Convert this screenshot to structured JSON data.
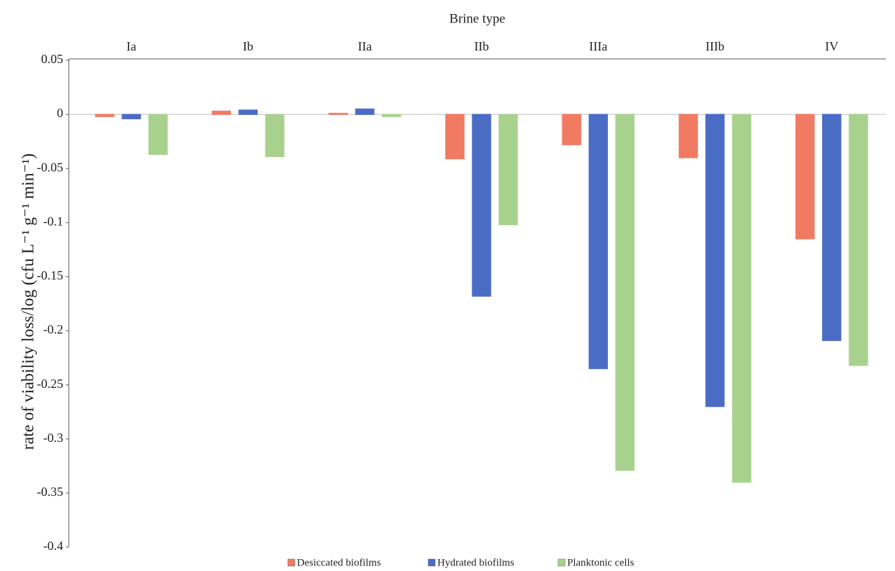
{
  "chart_data": {
    "type": "bar",
    "x_label": "Brine type",
    "y_label": "rate of viability loss/log (cfu L⁻¹ g⁻¹ min⁻¹)",
    "categories": [
      "Ia",
      "Ib",
      "IIa",
      "IIb",
      "IIIa",
      "IIIb",
      "IV"
    ],
    "series": [
      {
        "name": "Desiccated biofilms",
        "color": "#f07a62",
        "values": [
          -0.002,
          0.003,
          0.001,
          -0.041,
          -0.028,
          -0.04,
          -0.115
        ]
      },
      {
        "name": "Hydrated biofilms",
        "color": "#4a6cc4",
        "values": [
          -0.004,
          0.004,
          0.005,
          -0.168,
          -0.235,
          -0.27,
          -0.209
        ]
      },
      {
        "name": "Planktonic cells",
        "color": "#a9d18e",
        "values": [
          -0.037,
          -0.039,
          -0.002,
          -0.102,
          -0.329,
          -0.34,
          -0.232
        ]
      }
    ],
    "ylim": [
      -0.4,
      0.05
    ],
    "yticks": [
      0.05,
      0,
      -0.05,
      -0.1,
      -0.15,
      -0.2,
      -0.25,
      -0.3,
      -0.35,
      -0.4
    ]
  }
}
